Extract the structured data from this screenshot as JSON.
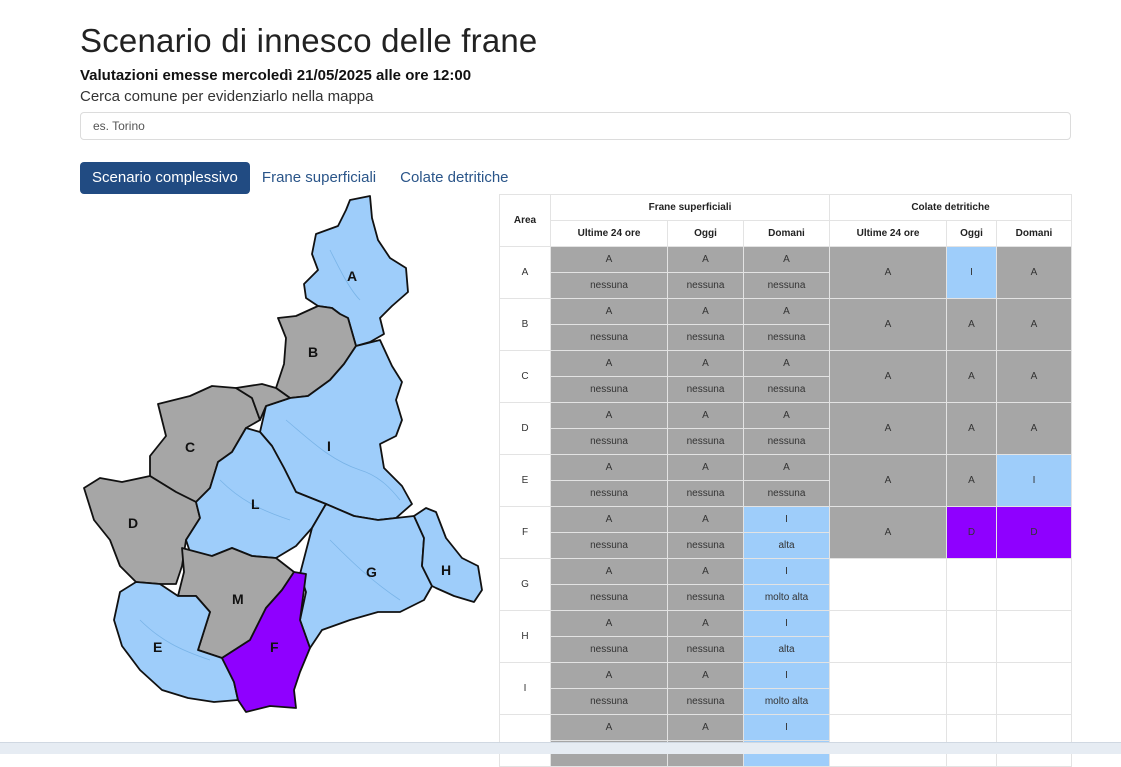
{
  "page": {
    "title": "Scenario di innesco delle frane",
    "subtitle": "Valutazioni emesse mercoledì 21/05/2025 alle ore 12:00",
    "search_hint": "Cerca comune per evidenziarlo nella mappa",
    "search_placeholder": "es. Torino"
  },
  "tabs": [
    {
      "label": "Scenario complessivo",
      "active": true
    },
    {
      "label": "Frane superficiali",
      "active": false
    },
    {
      "label": "Colate detritiche",
      "active": false
    }
  ],
  "colors": {
    "grey": "#a6a6a6",
    "light_blue": "#9ecdfa",
    "purple": "#8f00ff",
    "active_tab": "#214b82"
  },
  "map": {
    "areas": [
      {
        "label": "A",
        "status": "light_blue"
      },
      {
        "label": "B",
        "status": "grey"
      },
      {
        "label": "C",
        "status": "grey"
      },
      {
        "label": "D",
        "status": "grey"
      },
      {
        "label": "E",
        "status": "light_blue"
      },
      {
        "label": "F",
        "status": "purple"
      },
      {
        "label": "G",
        "status": "light_blue"
      },
      {
        "label": "H",
        "status": "light_blue"
      },
      {
        "label": "I",
        "status": "light_blue"
      },
      {
        "label": "L",
        "status": "light_blue"
      },
      {
        "label": "M",
        "status": "grey"
      }
    ]
  },
  "table": {
    "area_header": "Area",
    "group_headers": [
      "Frane superficiali",
      "Colate detritiche"
    ],
    "sub_headers": [
      "Ultime 24 ore",
      "Oggi",
      "Domani",
      "Ultime 24 ore",
      "Oggi",
      "Domani"
    ],
    "rows": [
      {
        "area": "A",
        "frane": [
          [
            "A",
            "nessuna",
            "g"
          ],
          [
            "A",
            "nessuna",
            "g"
          ],
          [
            "A",
            "nessuna",
            "g"
          ]
        ],
        "colate": [
          [
            "A",
            "g"
          ],
          [
            "I",
            "b"
          ],
          [
            "A",
            "g"
          ]
        ]
      },
      {
        "area": "B",
        "frane": [
          [
            "A",
            "nessuna",
            "g"
          ],
          [
            "A",
            "nessuna",
            "g"
          ],
          [
            "A",
            "nessuna",
            "g"
          ]
        ],
        "colate": [
          [
            "A",
            "g"
          ],
          [
            "A",
            "g"
          ],
          [
            "A",
            "g"
          ]
        ]
      },
      {
        "area": "C",
        "frane": [
          [
            "A",
            "nessuna",
            "g"
          ],
          [
            "A",
            "nessuna",
            "g"
          ],
          [
            "A",
            "nessuna",
            "g"
          ]
        ],
        "colate": [
          [
            "A",
            "g"
          ],
          [
            "A",
            "g"
          ],
          [
            "A",
            "g"
          ]
        ]
      },
      {
        "area": "D",
        "frane": [
          [
            "A",
            "nessuna",
            "g"
          ],
          [
            "A",
            "nessuna",
            "g"
          ],
          [
            "A",
            "nessuna",
            "g"
          ]
        ],
        "colate": [
          [
            "A",
            "g"
          ],
          [
            "A",
            "g"
          ],
          [
            "A",
            "g"
          ]
        ]
      },
      {
        "area": "E",
        "frane": [
          [
            "A",
            "nessuna",
            "g"
          ],
          [
            "A",
            "nessuna",
            "g"
          ],
          [
            "A",
            "nessuna",
            "g"
          ]
        ],
        "colate": [
          [
            "A",
            "g"
          ],
          [
            "A",
            "g"
          ],
          [
            "I",
            "b"
          ]
        ]
      },
      {
        "area": "F",
        "frane": [
          [
            "A",
            "nessuna",
            "g"
          ],
          [
            "A",
            "nessuna",
            "g"
          ],
          [
            "I",
            "alta",
            "b"
          ]
        ],
        "colate": [
          [
            "A",
            "g"
          ],
          [
            "D",
            "p"
          ],
          [
            "D",
            "p"
          ]
        ]
      },
      {
        "area": "G",
        "frane": [
          [
            "A",
            "nessuna",
            "g"
          ],
          [
            "A",
            "nessuna",
            "g"
          ],
          [
            "I",
            "molto alta",
            "b"
          ]
        ],
        "colate": [
          [
            "",
            "w"
          ],
          [
            "",
            "w"
          ],
          [
            "",
            "w"
          ]
        ]
      },
      {
        "area": "H",
        "frane": [
          [
            "A",
            "nessuna",
            "g"
          ],
          [
            "A",
            "nessuna",
            "g"
          ],
          [
            "I",
            "alta",
            "b"
          ]
        ],
        "colate": [
          [
            "",
            "w"
          ],
          [
            "",
            "w"
          ],
          [
            "",
            "w"
          ]
        ]
      },
      {
        "area": "I",
        "frane": [
          [
            "A",
            "nessuna",
            "g"
          ],
          [
            "A",
            "nessuna",
            "g"
          ],
          [
            "I",
            "molto alta",
            "b"
          ]
        ],
        "colate": [
          [
            "",
            "w"
          ],
          [
            "",
            "w"
          ],
          [
            "",
            "w"
          ]
        ]
      },
      {
        "area": "",
        "frane": [
          [
            "A",
            "",
            "g"
          ],
          [
            "A",
            "",
            "g"
          ],
          [
            "I",
            "",
            "b"
          ]
        ],
        "colate": [
          [
            "",
            "w"
          ],
          [
            "",
            "w"
          ],
          [
            "",
            "w"
          ]
        ]
      }
    ]
  }
}
